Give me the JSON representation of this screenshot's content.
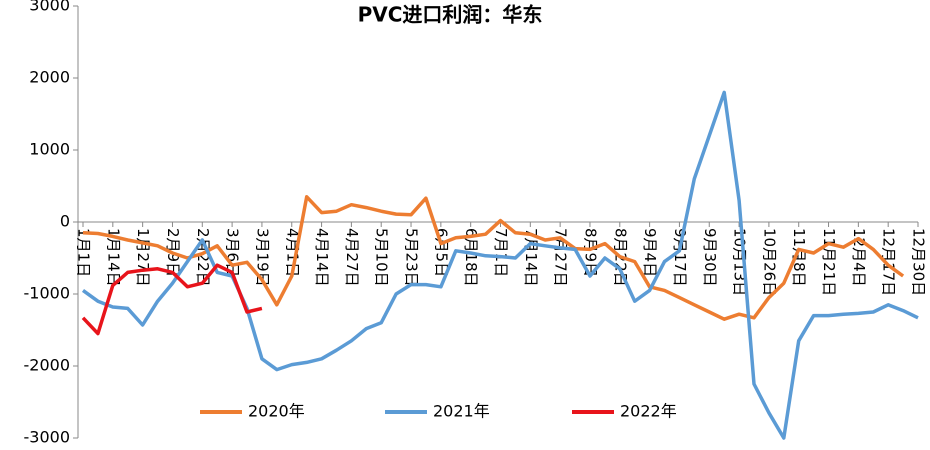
{
  "chart_data": {
    "type": "line",
    "title": "PVC进口利润：华东",
    "categories": [
      "1月1日",
      null,
      "1月14日",
      null,
      "1月27日",
      null,
      "2月9日",
      null,
      "2月22日",
      null,
      "3月6日",
      null,
      "3月19日",
      null,
      "4月1日",
      null,
      "4月14日",
      null,
      "4月27日",
      null,
      "5月10日",
      null,
      "5月23日",
      null,
      "6月5日",
      null,
      "6月18日",
      null,
      "7月1日",
      null,
      "7月14日",
      null,
      "7月27日",
      null,
      "8月9日",
      null,
      "8月22日",
      null,
      "9月4日",
      null,
      "9月17日",
      null,
      "9月30日",
      null,
      "10月13日",
      null,
      "10月26日",
      null,
      "11月8日",
      null,
      "11月21日",
      null,
      "12月4日",
      null,
      "12月17日",
      null,
      "12月30日"
    ],
    "series": [
      {
        "name": "2020年",
        "color": "#ed7d31",
        "values": [
          -150,
          -160,
          -200,
          -250,
          -290,
          -330,
          -430,
          -500,
          -440,
          -330,
          -600,
          -560,
          -800,
          -1150,
          -750,
          350,
          130,
          150,
          240,
          200,
          150,
          110,
          100,
          330,
          -300,
          -220,
          -200,
          -170,
          20,
          -150,
          -170,
          -250,
          -220,
          -370,
          -380,
          -300,
          -480,
          -550,
          -900,
          -950,
          -1050,
          -1150,
          -1250,
          -1350,
          -1280,
          -1330,
          -1050,
          -850,
          -380,
          -430,
          -300,
          -350,
          -230,
          -380,
          -600,
          -750,
          null
        ]
      },
      {
        "name": "2021年",
        "color": "#5b9bd5",
        "values": [
          -950,
          -1100,
          -1180,
          -1200,
          -1430,
          -1100,
          -850,
          -550,
          -250,
          -700,
          -750,
          -1200,
          -1900,
          -2050,
          -1980,
          -1950,
          -1900,
          -1780,
          -1650,
          -1480,
          -1400,
          -1000,
          -870,
          -870,
          -900,
          -400,
          -430,
          -470,
          -480,
          -500,
          -300,
          -330,
          -360,
          -380,
          -750,
          -500,
          -650,
          -1100,
          -950,
          -550,
          -400,
          600,
          1200,
          1800,
          300,
          -2250,
          -2650,
          -3000,
          -1650,
          -1300,
          -1300,
          -1280,
          -1270,
          -1250,
          -1150,
          -1230,
          -1330
        ]
      },
      {
        "name": "2022年",
        "color": "#e8141b",
        "values": [
          -1330,
          -1550,
          -880,
          -700,
          -670,
          -650,
          -700,
          -900,
          -850,
          -600,
          -700,
          -1250,
          -1200,
          null,
          null,
          null,
          null,
          null,
          null,
          null,
          null,
          null,
          null,
          null,
          null,
          null,
          null,
          null,
          null,
          null,
          null,
          null,
          null,
          null,
          null,
          null,
          null,
          null,
          null,
          null,
          null,
          null,
          null,
          null,
          null,
          null,
          null,
          null,
          null,
          null,
          null,
          null,
          null,
          null,
          null,
          null,
          null
        ]
      }
    ],
    "ylim": [
      -3000,
      3000
    ],
    "yticks": [
      -3000,
      -2000,
      -1000,
      0,
      1000,
      2000,
      3000
    ]
  }
}
